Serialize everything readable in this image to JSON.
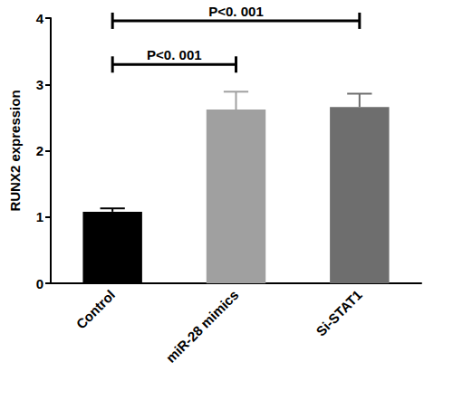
{
  "chart_data": {
    "type": "bar",
    "categories": [
      "Control",
      "miR-28 mimics",
      "Si-STAT1"
    ],
    "values": [
      1.08,
      2.62,
      2.66
    ],
    "errors": [
      0.05,
      0.27,
      0.2
    ],
    "colors": [
      "#000000",
      "#a0a0a0",
      "#6e6e6e"
    ],
    "y_label": "RUNX2 expression",
    "ylim": [
      0,
      4
    ],
    "yticks": [
      0,
      1,
      2,
      3,
      4
    ],
    "annotations": [
      {
        "text": "P<0. 001",
        "from": "Control",
        "to": "miR-28 mimics"
      },
      {
        "text": "P<0. 001",
        "from": "Control",
        "to": "Si-STAT1"
      }
    ],
    "grid": false
  }
}
